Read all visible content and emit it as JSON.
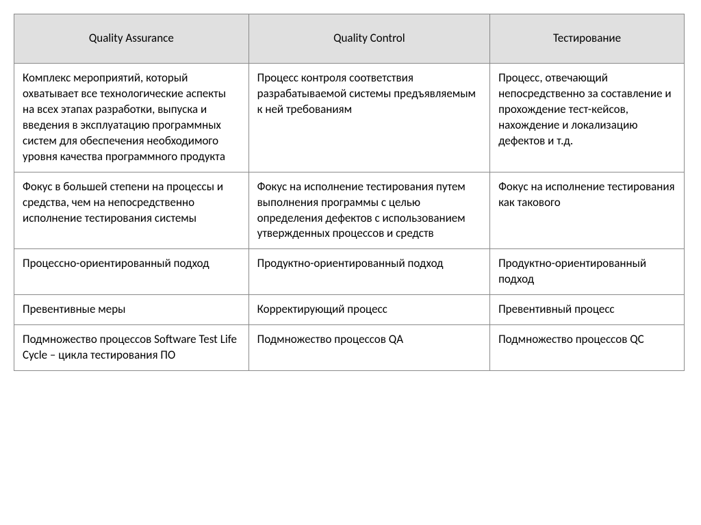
{
  "table": {
    "background_color": "#ffffff",
    "header_bg": "#e0e0e0",
    "border_color": "#8a8a8a",
    "text_color": "#000000",
    "font_size": 17,
    "columns": [
      {
        "label": "Quality Assurance",
        "width_pct": 35
      },
      {
        "label": "Quality Control",
        "width_pct": 36
      },
      {
        "label": "Тестирование",
        "width_pct": 29
      }
    ],
    "rows": [
      [
        "Комплекс мероприятий, который охватывает все технологические аспекты на всех этапах разработки, выпуска и введения в эксплуатацию программных систем для обеспечения необходимого уровня качества программного продукта",
        "Процесс контроля соответствия разрабатываемой системы предъявляемым к ней требованиям",
        "Процесс, отвечающий непосредственно за составление и прохождение тест-кейсов, нахождение и локализацию дефектов и т.д."
      ],
      [
        "Фокус в большей степени на процессы и средства, чем на непосредственно исполнение тестирования системы",
        "Фокус на исполнение тестирования путем выполнения программы с целью определения дефектов с использованием утвержденных процессов и средств",
        "Фокус на исполнение тестирования как такового"
      ],
      [
        "Процессно-ориентированный подход",
        "Продуктно-ориентированный подход",
        "Продуктно-ориентированный подход"
      ],
      [
        "Превентивные меры",
        "Корректирующий процесс",
        "Превентивный процесс"
      ],
      [
        "Подмножество процессов Software Test Life Cycle – цикла тестирования ПО",
        "Подмножество процессов QA",
        "Подмножество процессов QC"
      ]
    ]
  }
}
